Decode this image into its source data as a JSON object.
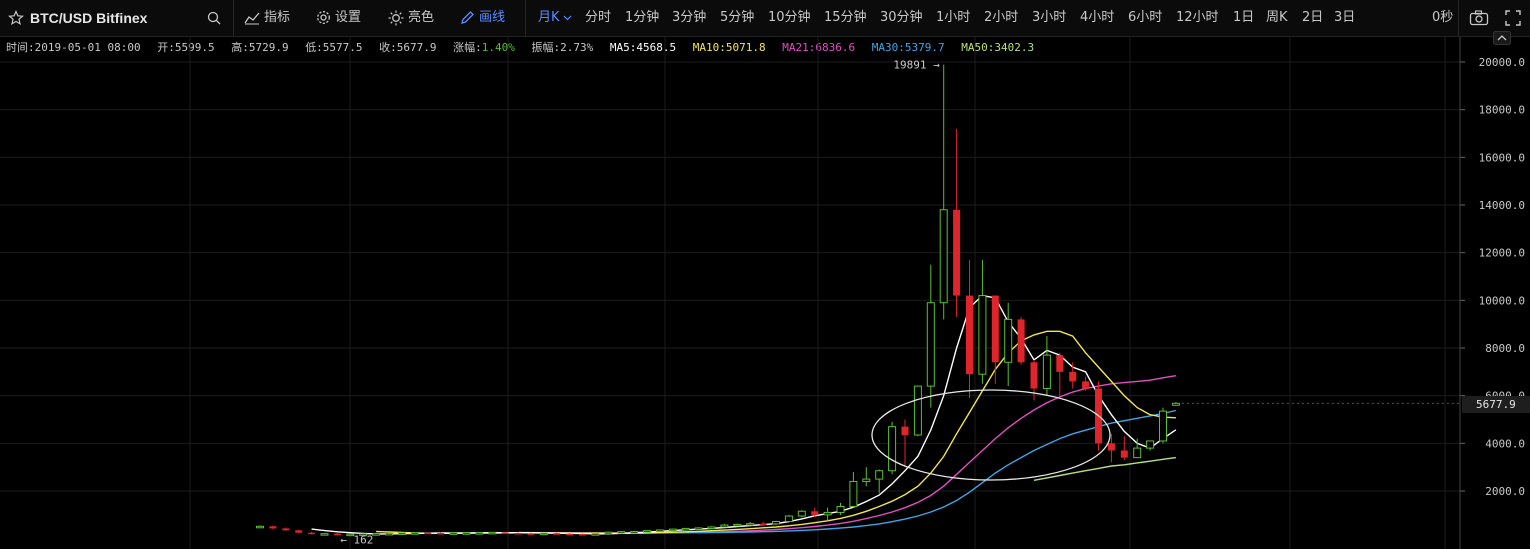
{
  "toolbar": {
    "symbol": "BTC/USD Bitfinex",
    "search_icon": "search-icon",
    "indicators": "指标",
    "settings": "设置",
    "brightness": "亮色",
    "draw": "画线",
    "period_selected": "月K",
    "periods": [
      "分时",
      "1分钟",
      "3分钟",
      "5分钟",
      "10分钟",
      "15分钟",
      "30分钟",
      "1小时",
      "2小时",
      "3小时",
      "4小时",
      "6小时",
      "12小时",
      "1日",
      "周K",
      "2日",
      "3日"
    ],
    "timer": "0秒",
    "camera_icon": "camera-icon",
    "fullscreen_icon": "fullscreen-icon",
    "collapse_icon": "chevron-up-icon"
  },
  "info": {
    "time": "时间:2019-05-01 08:00",
    "open": "开:5599.5",
    "high": "高:5729.9",
    "low": "低:5577.5",
    "close": "收:5677.9",
    "change_label": "涨幅:",
    "change_value": "1.40%",
    "amplitude": "振幅:2.73%",
    "ma5": "MA5:4568.5",
    "ma10": "MA10:5071.8",
    "ma21": "MA21:6836.6",
    "ma30": "MA30:5379.7",
    "ma50": "MA50:3402.3"
  },
  "colors": {
    "up": "#5bbf2e",
    "down": "#e0242b",
    "ma5": "#ffffff",
    "ma10": "#f2e64d",
    "ma21": "#e04fc4",
    "ma30": "#3fa4e8",
    "ma50": "#b8e07a",
    "change": "#5bbf2e"
  },
  "chart_data": {
    "type": "candlestick",
    "y_axis_ticks": [
      "2000.0",
      "4000.0",
      "6000.0",
      "8000.0",
      "10000.0",
      "12000.0",
      "14000.0",
      "16000.0",
      "18000.0",
      "20000.0"
    ],
    "ylim": [
      0,
      20800
    ],
    "last_price": "5677.9",
    "max_label": "19891 →",
    "min_label": "← 162",
    "candles": [
      {
        "o": 500,
        "h": 560,
        "l": 440,
        "c": 520
      },
      {
        "o": 520,
        "h": 540,
        "l": 400,
        "c": 430
      },
      {
        "o": 430,
        "h": 470,
        "l": 330,
        "c": 350
      },
      {
        "o": 350,
        "h": 380,
        "l": 230,
        "c": 250
      },
      {
        "o": 250,
        "h": 280,
        "l": 180,
        "c": 200
      },
      {
        "o": 200,
        "h": 230,
        "l": 160,
        "c": 210
      },
      {
        "o": 210,
        "h": 240,
        "l": 150,
        "c": 160
      },
      {
        "o": 160,
        "h": 200,
        "l": 140,
        "c": 190
      },
      {
        "o": 190,
        "h": 220,
        "l": 170,
        "c": 200
      },
      {
        "o": 200,
        "h": 230,
        "l": 180,
        "c": 210
      },
      {
        "o": 210,
        "h": 240,
        "l": 190,
        "c": 220
      },
      {
        "o": 220,
        "h": 250,
        "l": 200,
        "c": 240
      },
      {
        "o": 240,
        "h": 270,
        "l": 220,
        "c": 250
      },
      {
        "o": 250,
        "h": 280,
        "l": 230,
        "c": 240
      },
      {
        "o": 240,
        "h": 260,
        "l": 210,
        "c": 230
      },
      {
        "o": 230,
        "h": 260,
        "l": 210,
        "c": 245
      },
      {
        "o": 245,
        "h": 270,
        "l": 225,
        "c": 250
      },
      {
        "o": 250,
        "h": 280,
        "l": 230,
        "c": 255
      },
      {
        "o": 255,
        "h": 280,
        "l": 230,
        "c": 265
      },
      {
        "o": 265,
        "h": 290,
        "l": 240,
        "c": 240
      },
      {
        "o": 240,
        "h": 265,
        "l": 220,
        "c": 225
      },
      {
        "o": 225,
        "h": 250,
        "l": 200,
        "c": 215
      },
      {
        "o": 215,
        "h": 240,
        "l": 190,
        "c": 230
      },
      {
        "o": 230,
        "h": 250,
        "l": 200,
        "c": 210
      },
      {
        "o": 210,
        "h": 230,
        "l": 180,
        "c": 195
      },
      {
        "o": 195,
        "h": 215,
        "l": 162,
        "c": 185
      },
      {
        "o": 185,
        "h": 220,
        "l": 170,
        "c": 210
      },
      {
        "o": 210,
        "h": 300,
        "l": 200,
        "c": 270
      },
      {
        "o": 270,
        "h": 320,
        "l": 250,
        "c": 295
      },
      {
        "o": 295,
        "h": 330,
        "l": 270,
        "c": 300
      },
      {
        "o": 300,
        "h": 350,
        "l": 280,
        "c": 335
      },
      {
        "o": 335,
        "h": 380,
        "l": 320,
        "c": 365
      },
      {
        "o": 365,
        "h": 420,
        "l": 350,
        "c": 400
      },
      {
        "o": 400,
        "h": 450,
        "l": 380,
        "c": 430
      },
      {
        "o": 430,
        "h": 480,
        "l": 400,
        "c": 450
      },
      {
        "o": 450,
        "h": 520,
        "l": 420,
        "c": 490
      },
      {
        "o": 490,
        "h": 620,
        "l": 470,
        "c": 570
      },
      {
        "o": 570,
        "h": 630,
        "l": 520,
        "c": 600
      },
      {
        "o": 600,
        "h": 700,
        "l": 560,
        "c": 630
      },
      {
        "o": 630,
        "h": 720,
        "l": 540,
        "c": 620
      },
      {
        "o": 620,
        "h": 750,
        "l": 580,
        "c": 720
      },
      {
        "o": 720,
        "h": 1000,
        "l": 700,
        "c": 950
      },
      {
        "o": 950,
        "h": 1200,
        "l": 900,
        "c": 1150
      },
      {
        "o": 1150,
        "h": 1300,
        "l": 900,
        "c": 1000
      },
      {
        "o": 1000,
        "h": 1300,
        "l": 750,
        "c": 1100
      },
      {
        "o": 1100,
        "h": 1500,
        "l": 1000,
        "c": 1350
      },
      {
        "o": 1350,
        "h": 2800,
        "l": 1300,
        "c": 2400
      },
      {
        "o": 2400,
        "h": 3000,
        "l": 2200,
        "c": 2500
      },
      {
        "o": 2500,
        "h": 2900,
        "l": 1900,
        "c": 2850
      },
      {
        "o": 2850,
        "h": 4900,
        "l": 2700,
        "c": 4700
      },
      {
        "o": 4700,
        "h": 5000,
        "l": 3000,
        "c": 4350
      },
      {
        "o": 4350,
        "h": 6400,
        "l": 4300,
        "c": 6400
      },
      {
        "o": 6400,
        "h": 11500,
        "l": 5500,
        "c": 9900
      },
      {
        "o": 9900,
        "h": 19891,
        "l": 9200,
        "c": 13800
      },
      {
        "o": 13800,
        "h": 17200,
        "l": 9300,
        "c": 10200
      },
      {
        "o": 10200,
        "h": 11700,
        "l": 5900,
        "c": 6900
      },
      {
        "o": 6900,
        "h": 11700,
        "l": 6500,
        "c": 10200
      },
      {
        "o": 10200,
        "h": 10200,
        "l": 6500,
        "c": 7400
      },
      {
        "o": 7400,
        "h": 9900,
        "l": 6400,
        "c": 9200
      },
      {
        "o": 9200,
        "h": 9300,
        "l": 7300,
        "c": 7400
      },
      {
        "o": 7400,
        "h": 7500,
        "l": 5800,
        "c": 6300
      },
      {
        "o": 6300,
        "h": 8500,
        "l": 6000,
        "c": 7700
      },
      {
        "o": 7700,
        "h": 7800,
        "l": 6000,
        "c": 7000
      },
      {
        "o": 7000,
        "h": 7400,
        "l": 6300,
        "c": 6600
      },
      {
        "o": 6600,
        "h": 6800,
        "l": 6200,
        "c": 6300
      },
      {
        "o": 6300,
        "h": 6600,
        "l": 3700,
        "c": 4000
      },
      {
        "o": 4000,
        "h": 4400,
        "l": 3200,
        "c": 3700
      },
      {
        "o": 3700,
        "h": 4300,
        "l": 3300,
        "c": 3400
      },
      {
        "o": 3400,
        "h": 4200,
        "l": 3400,
        "c": 3800
      },
      {
        "o": 3800,
        "h": 4100,
        "l": 3700,
        "c": 4100
      },
      {
        "o": 4100,
        "h": 5500,
        "l": 4000,
        "c": 5350
      },
      {
        "o": 5599.5,
        "h": 5729.9,
        "l": 5577.5,
        "c": 5677.9
      }
    ],
    "ma5": [
      null,
      null,
      null,
      null,
      400,
      340,
      290,
      250,
      220,
      200,
      200,
      210,
      220,
      230,
      240,
      240,
      240,
      245,
      250,
      250,
      250,
      245,
      240,
      230,
      225,
      215,
      205,
      205,
      225,
      245,
      270,
      310,
      340,
      370,
      400,
      430,
      470,
      510,
      550,
      590,
      630,
      720,
      830,
      960,
      1050,
      1150,
      1320,
      1560,
      1830,
      2300,
      2850,
      3450,
      4560,
      6000,
      8000,
      9700,
      10200,
      10100,
      9100,
      8400,
      7500,
      7900,
      7700,
      7200,
      7000,
      6000,
      5200,
      4500,
      4000,
      3800,
      4200,
      4568.5
    ],
    "ma10": [
      null,
      null,
      null,
      null,
      null,
      null,
      null,
      null,
      null,
      300,
      280,
      260,
      240,
      230,
      225,
      225,
      228,
      232,
      238,
      242,
      246,
      245,
      244,
      242,
      240,
      235,
      232,
      228,
      228,
      230,
      240,
      255,
      272,
      290,
      310,
      335,
      360,
      390,
      420,
      455,
      490,
      540,
      600,
      670,
      750,
      850,
      980,
      1150,
      1350,
      1570,
      1850,
      2200,
      2750,
      3450,
      4400,
      5300,
      6200,
      7100,
      7800,
      8300,
      8550,
      8700,
      8700,
      8500,
      7800,
      7200,
      6600,
      6000,
      5500,
      5200,
      5100,
      5071.8
    ],
    "ma21": [
      null,
      null,
      null,
      null,
      null,
      null,
      null,
      null,
      null,
      null,
      null,
      null,
      null,
      null,
      null,
      null,
      null,
      null,
      null,
      null,
      260,
      255,
      250,
      245,
      242,
      240,
      238,
      237,
      236,
      236,
      238,
      242,
      248,
      256,
      266,
      278,
      292,
      310,
      330,
      355,
      385,
      420,
      460,
      510,
      570,
      640,
      730,
      840,
      970,
      1120,
      1300,
      1520,
      1810,
      2200,
      2700,
      3200,
      3700,
      4200,
      4650,
      5050,
      5400,
      5700,
      5950,
      6150,
      6300,
      6400,
      6500,
      6550,
      6600,
      6650,
      6750,
      6836.6
    ],
    "ma30": [
      null,
      null,
      null,
      null,
      null,
      null,
      null,
      null,
      null,
      null,
      null,
      null,
      null,
      null,
      null,
      null,
      null,
      null,
      null,
      null,
      null,
      null,
      null,
      null,
      null,
      null,
      null,
      null,
      null,
      260,
      255,
      252,
      250,
      250,
      252,
      256,
      262,
      270,
      280,
      292,
      306,
      324,
      346,
      372,
      404,
      442,
      490,
      550,
      620,
      710,
      820,
      950,
      1120,
      1330,
      1600,
      1950,
      2350,
      2750,
      3100,
      3400,
      3700,
      3950,
      4200,
      4400,
      4550,
      4700,
      4850,
      4950,
      5050,
      5150,
      5250,
      5379.7
    ],
    "ma50": [
      null,
      null,
      null,
      null,
      null,
      null,
      null,
      null,
      null,
      null,
      null,
      null,
      null,
      null,
      null,
      null,
      null,
      null,
      null,
      null,
      null,
      null,
      null,
      null,
      null,
      null,
      null,
      null,
      null,
      null,
      null,
      null,
      null,
      null,
      null,
      null,
      null,
      null,
      null,
      null,
      null,
      null,
      null,
      null,
      null,
      null,
      null,
      null,
      null,
      null,
      null,
      null,
      null,
      null,
      null,
      null,
      null,
      null,
      null,
      null,
      2450,
      2550,
      2650,
      2750,
      2850,
      2950,
      3050,
      3100,
      3180,
      3250,
      3330,
      3402.3
    ]
  }
}
